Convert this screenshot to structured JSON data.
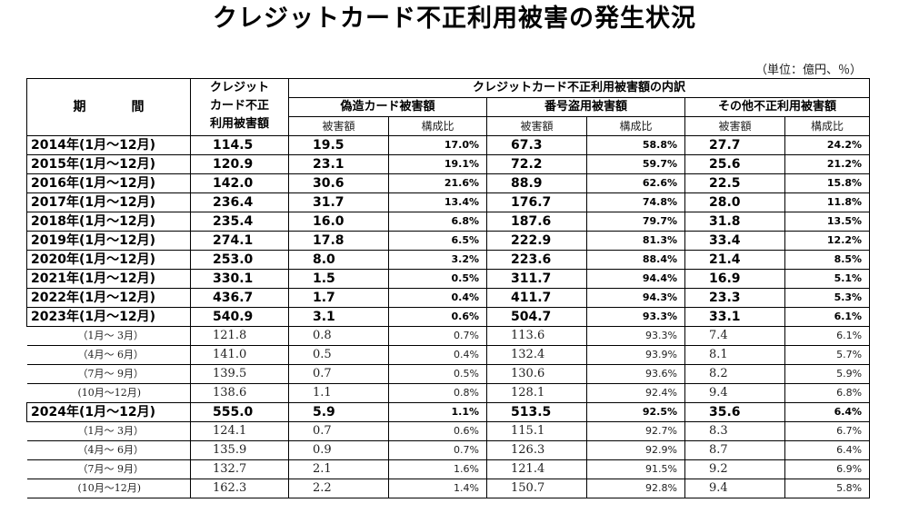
{
  "title": "クレジットカード不正利用被害の発生状況",
  "unit": "（単位：億円、％）",
  "headers": {
    "period": "期　間",
    "total_line1": "クレジット",
    "total_line2": "カード不正",
    "total_line3": "利用被害額",
    "breakdown": "クレジットカード不正利用被害額の内訳",
    "counterfeit": "偽造カード被害額",
    "number_theft": "番号盗用被害額",
    "other": "その他不正利用被害額",
    "amount": "被害額",
    "ratio": "構成比"
  },
  "rows": [
    {
      "period": "2014年(1月～12月)",
      "total": "114.5",
      "c_amt": "19.5",
      "c_pct": "17.0%",
      "n_amt": "67.3",
      "n_pct": "58.8%",
      "o_amt": "27.7",
      "o_pct": "24.2%"
    },
    {
      "period": "2015年(1月～12月)",
      "total": "120.9",
      "c_amt": "23.1",
      "c_pct": "19.1%",
      "n_amt": "72.2",
      "n_pct": "59.7%",
      "o_amt": "25.6",
      "o_pct": "21.2%"
    },
    {
      "period": "2016年(1月～12月)",
      "total": "142.0",
      "c_amt": "30.6",
      "c_pct": "21.6%",
      "n_amt": "88.9",
      "n_pct": "62.6%",
      "o_amt": "22.5",
      "o_pct": "15.8%"
    },
    {
      "period": "2017年(1月～12月)",
      "total": "236.4",
      "c_amt": "31.7",
      "c_pct": "13.4%",
      "n_amt": "176.7",
      "n_pct": "74.8%",
      "o_amt": "28.0",
      "o_pct": "11.8%"
    },
    {
      "period": "2018年(1月～12月)",
      "total": "235.4",
      "c_amt": "16.0",
      "c_pct": "6.8%",
      "n_amt": "187.6",
      "n_pct": "79.7%",
      "o_amt": "31.8",
      "o_pct": "13.5%"
    },
    {
      "period": "2019年(1月～12月)",
      "total": "274.1",
      "c_amt": "17.8",
      "c_pct": "6.5%",
      "n_amt": "222.9",
      "n_pct": "81.3%",
      "o_amt": "33.4",
      "o_pct": "12.2%"
    },
    {
      "period": "2020年(1月～12月)",
      "total": "253.0",
      "c_amt": "8.0",
      "c_pct": "3.2%",
      "n_amt": "223.6",
      "n_pct": "88.4%",
      "o_amt": "21.4",
      "o_pct": "8.5%"
    },
    {
      "period": "2021年(1月～12月)",
      "total": "330.1",
      "c_amt": "1.5",
      "c_pct": "0.5%",
      "n_amt": "311.7",
      "n_pct": "94.4%",
      "o_amt": "16.9",
      "o_pct": "5.1%"
    },
    {
      "period": "2022年(1月～12月)",
      "total": "436.7",
      "c_amt": "1.7",
      "c_pct": "0.4%",
      "n_amt": "411.7",
      "n_pct": "94.3%",
      "o_amt": "23.3",
      "o_pct": "5.3%"
    },
    {
      "period": "2023年(1月～12月)",
      "total": "540.9",
      "c_amt": "3.1",
      "c_pct": "0.6%",
      "n_amt": "504.7",
      "n_pct": "93.3%",
      "o_amt": "33.1",
      "o_pct": "6.1%"
    },
    {
      "period": "（1月～ 3月）",
      "total": "121.8",
      "c_amt": "0.8",
      "c_pct": "0.7%",
      "n_amt": "113.6",
      "n_pct": "93.3%",
      "o_amt": "7.4",
      "o_pct": "6.1%"
    },
    {
      "period": "（4月～ 6月）",
      "total": "141.0",
      "c_amt": "0.5",
      "c_pct": "0.4%",
      "n_amt": "132.4",
      "n_pct": "93.9%",
      "o_amt": "8.1",
      "o_pct": "5.7%"
    },
    {
      "period": "（7月～ 9月）",
      "total": "139.5",
      "c_amt": "0.7",
      "c_pct": "0.5%",
      "n_amt": "130.6",
      "n_pct": "93.6%",
      "o_amt": "8.2",
      "o_pct": "5.9%"
    },
    {
      "period": "(10月～12月)",
      "total": "138.6",
      "c_amt": "1.1",
      "c_pct": "0.8%",
      "n_amt": "128.1",
      "n_pct": "92.4%",
      "o_amt": "9.4",
      "o_pct": "6.8%"
    },
    {
      "period": "2024年(1月～12月)",
      "total": "555.0",
      "c_amt": "5.9",
      "c_pct": "1.1%",
      "n_amt": "513.5",
      "n_pct": "92.5%",
      "o_amt": "35.6",
      "o_pct": "6.4%"
    },
    {
      "period": "（1月～ 3月）",
      "total": "124.1",
      "c_amt": "0.7",
      "c_pct": "0.6%",
      "n_amt": "115.1",
      "n_pct": "92.7%",
      "o_amt": "8.3",
      "o_pct": "6.7%"
    },
    {
      "period": "（4月～ 6月）",
      "total": "135.9",
      "c_amt": "0.9",
      "c_pct": "0.7%",
      "n_amt": "126.3",
      "n_pct": "92.9%",
      "o_amt": "8.7",
      "o_pct": "6.4%"
    },
    {
      "period": "（7月～ 9月）",
      "total": "132.7",
      "c_amt": "2.1",
      "c_pct": "1.6%",
      "n_amt": "121.4",
      "n_pct": "91.5%",
      "o_amt": "9.2",
      "o_pct": "6.9%"
    },
    {
      "period": "(10月～12月)",
      "total": "162.3",
      "c_amt": "2.2",
      "c_pct": "1.4%",
      "n_amt": "150.7",
      "n_pct": "92.8%",
      "o_amt": "9.4",
      "o_pct": "5.8%"
    }
  ]
}
